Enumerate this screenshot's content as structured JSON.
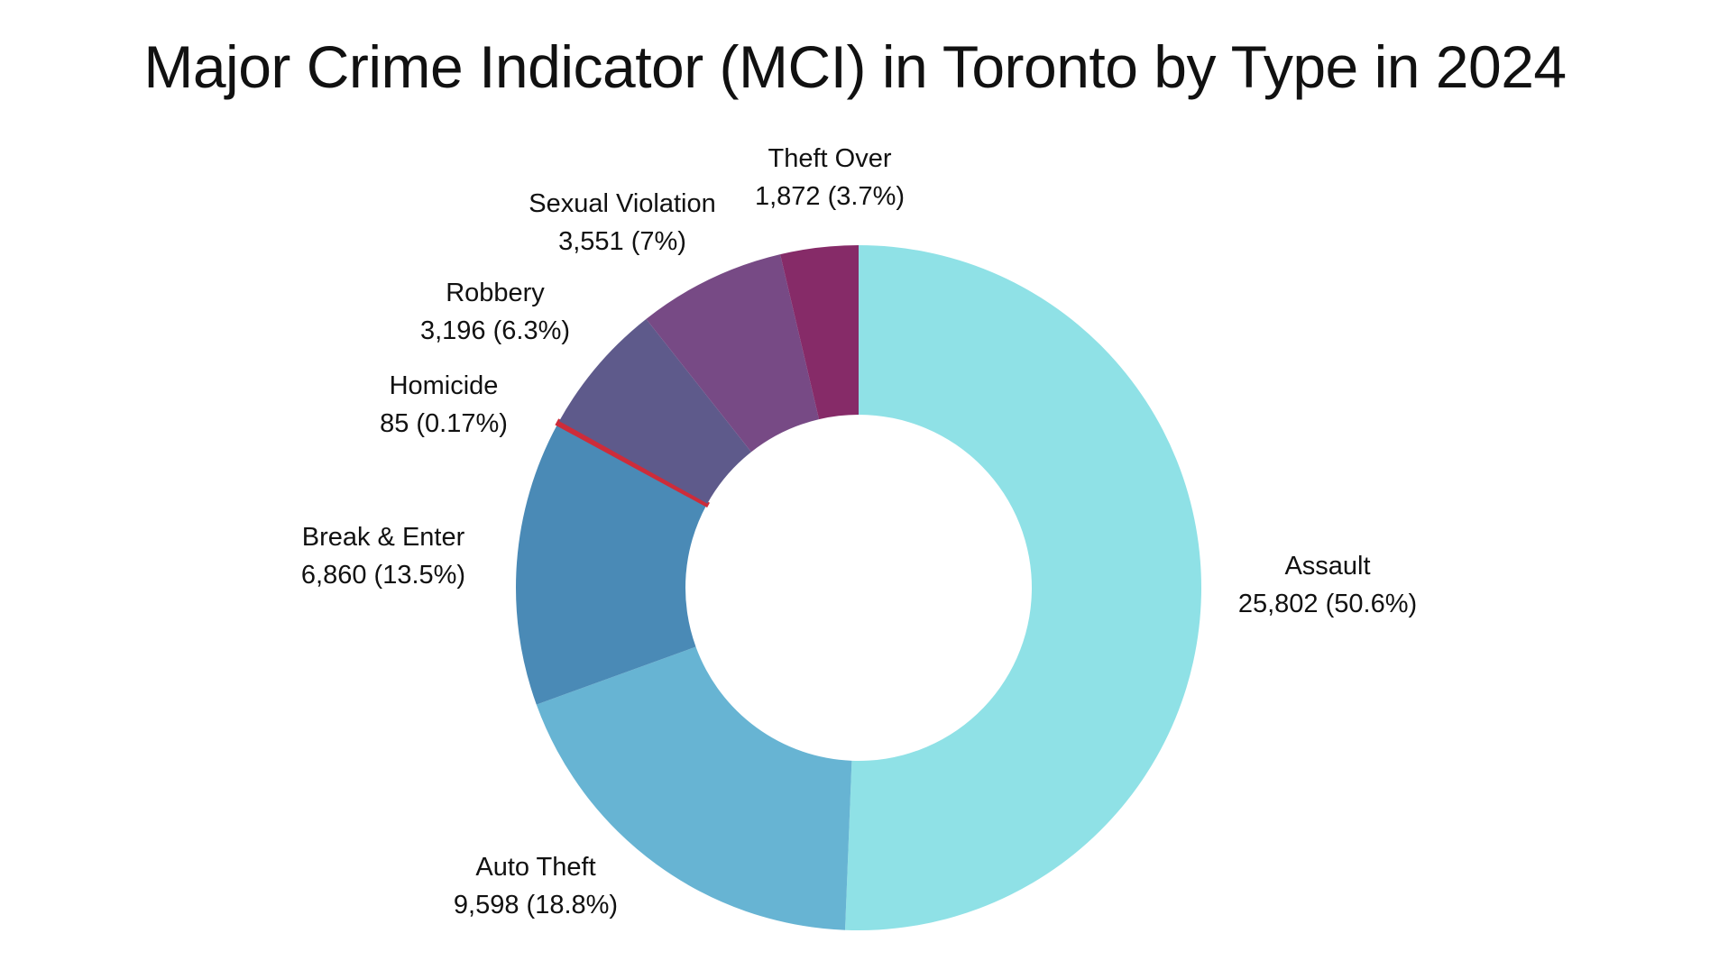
{
  "chart_data": {
    "type": "pie",
    "title": "Major Crime Indicator (MCI) in Toronto by Type in 2024",
    "donut": true,
    "legend": "none",
    "slices": [
      {
        "label": "Assault",
        "value": 25802,
        "value_text": "25,802 (50.6%)",
        "percent": 50.6,
        "color": "#8FE1E6"
      },
      {
        "label": "Auto Theft",
        "value": 9598,
        "value_text": "9,598 (18.8%)",
        "percent": 18.8,
        "color": "#67B4D3"
      },
      {
        "label": "Break & Enter",
        "value": 6860,
        "value_text": "6,860 (13.5%)",
        "percent": 13.5,
        "color": "#4A8AB6"
      },
      {
        "label": "Homicide",
        "value": 85,
        "value_text": "85 (0.17%)",
        "percent": 0.17,
        "color": "#CD2C3A"
      },
      {
        "label": "Robbery",
        "value": 3196,
        "value_text": "3,196 (6.3%)",
        "percent": 6.3,
        "color": "#5E5A8B"
      },
      {
        "label": "Sexual Violation",
        "value": 3551,
        "value_text": "3,551 (7%)",
        "percent": 7,
        "color": "#774A85"
      },
      {
        "label": "Theft Over",
        "value": 1872,
        "value_text": "1,872 (3.7%)",
        "percent": 3.7,
        "color": "#862B68"
      }
    ]
  }
}
